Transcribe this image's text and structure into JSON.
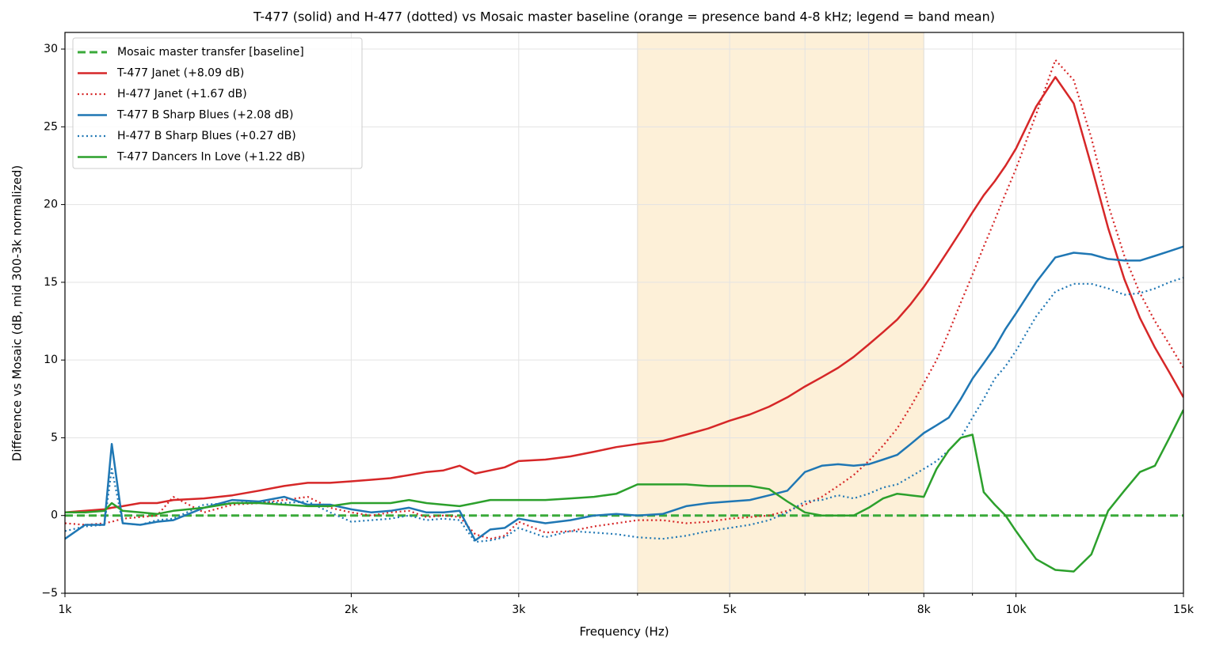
{
  "chart_data": {
    "type": "line",
    "title": "T-477 (solid) and H-477 (dotted) vs Mosaic master baseline (orange = presence band 4-8 kHz; legend = band mean)",
    "xlabel": "Frequency (Hz)",
    "ylabel": "Difference vs Mosaic (dB, mid 300-3k normalized)",
    "xscale": "log",
    "xlim": [
      1000,
      15000
    ],
    "ylim": [
      -5,
      31.07
    ],
    "xticks": [
      {
        "value": 1000,
        "label": "1k"
      },
      {
        "value": 2000,
        "label": "2k"
      },
      {
        "value": 3000,
        "label": "3k"
      },
      {
        "value": 5000,
        "label": "5k"
      },
      {
        "value": 8000,
        "label": "8k"
      },
      {
        "value": 10000,
        "label": "10k"
      },
      {
        "value": 15000,
        "label": "15k"
      }
    ],
    "xminor": [
      4000,
      6000,
      7000,
      9000
    ],
    "yticks": [
      {
        "value": -5,
        "label": "−5"
      },
      0,
      5,
      10,
      15,
      20,
      25,
      30
    ],
    "grid": true,
    "band": [
      4000,
      8000
    ],
    "band_color": "#fdf0d8",
    "legend": "upper left",
    "x": [
      1000,
      1050,
      1100,
      1120,
      1150,
      1200,
      1250,
      1300,
      1400,
      1500,
      1600,
      1700,
      1800,
      1900,
      2000,
      2100,
      2200,
      2300,
      2400,
      2500,
      2600,
      2700,
      2800,
      2900,
      3000,
      3200,
      3400,
      3600,
      3800,
      4000,
      4250,
      4500,
      4750,
      5000,
      5250,
      5500,
      5750,
      6000,
      6250,
      6500,
      6750,
      7000,
      7250,
      7500,
      7750,
      8000,
      8250,
      8500,
      8750,
      9000,
      9250,
      9500,
      9750,
      10000,
      10500,
      11000,
      11500,
      12000,
      12500,
      13000,
      13500,
      14000,
      14500,
      15000
    ],
    "series": [
      {
        "name": "Mosaic master transfer [baseline]",
        "color": "#3aaa3a",
        "dash": "dashed",
        "values": [
          0,
          0,
          0,
          0,
          0,
          0,
          0,
          0,
          0,
          0,
          0,
          0,
          0,
          0,
          0,
          0,
          0,
          0,
          0,
          0,
          0,
          0,
          0,
          0,
          0,
          0,
          0,
          0,
          0,
          0,
          0,
          0,
          0,
          0,
          0,
          0,
          0,
          0,
          0,
          0,
          0,
          0,
          0,
          0,
          0,
          0,
          0,
          0,
          0,
          0,
          0,
          0,
          0,
          0,
          0,
          0,
          0,
          0,
          0,
          0,
          0,
          0,
          0,
          0
        ]
      },
      {
        "name": "T-477  Janet (+8.09 dB)",
        "color": "#d62728",
        "dash": "solid",
        "values": [
          0.2,
          0.3,
          0.4,
          0.5,
          0.6,
          0.8,
          0.8,
          1.0,
          1.1,
          1.3,
          1.6,
          1.9,
          2.1,
          2.1,
          2.2,
          2.3,
          2.4,
          2.6,
          2.8,
          2.9,
          3.2,
          2.7,
          2.9,
          3.1,
          3.5,
          3.6,
          3.8,
          4.1,
          4.4,
          4.6,
          4.8,
          5.2,
          5.6,
          6.1,
          6.5,
          7.0,
          7.6,
          8.3,
          8.9,
          9.5,
          10.2,
          11.0,
          11.8,
          12.6,
          13.6,
          14.7,
          15.9,
          17.1,
          18.3,
          19.5,
          20.6,
          21.5,
          22.5,
          23.6,
          26.3,
          28.2,
          26.5,
          22.5,
          18.5,
          15.2,
          12.7,
          10.8,
          9.2,
          7.6
        ]
      },
      {
        "name": "H-477  Janet (+1.67 dB)",
        "color": "#d62728",
        "dash": "dotted",
        "values": [
          -0.5,
          -0.6,
          -0.5,
          -0.4,
          -0.2,
          -0.1,
          0.0,
          1.2,
          0.2,
          0.7,
          0.8,
          1.0,
          1.2,
          0.5,
          0.2,
          0.0,
          0.2,
          0.3,
          -0.1,
          0.0,
          -0.1,
          -1.2,
          -1.5,
          -1.3,
          -0.4,
          -1.1,
          -1.0,
          -0.7,
          -0.5,
          -0.3,
          -0.3,
          -0.5,
          -0.4,
          -0.2,
          -0.1,
          0.0,
          0.3,
          0.7,
          1.2,
          1.9,
          2.6,
          3.5,
          4.5,
          5.6,
          7.0,
          8.5,
          10.0,
          11.8,
          13.7,
          15.5,
          17.3,
          19.0,
          20.7,
          22.3,
          25.8,
          29.3,
          28.0,
          24.3,
          20.0,
          16.7,
          14.3,
          12.5,
          11.0,
          9.5
        ]
      },
      {
        "name": "T-477  B Sharp Blues (+2.08 dB)",
        "color": "#1f77b4",
        "dash": "solid",
        "values": [
          -1.5,
          -0.6,
          -0.6,
          4.6,
          -0.5,
          -0.6,
          -0.4,
          -0.3,
          0.5,
          1.0,
          0.9,
          1.2,
          0.7,
          0.7,
          0.4,
          0.2,
          0.3,
          0.5,
          0.2,
          0.2,
          0.3,
          -1.6,
          -0.9,
          -0.8,
          -0.2,
          -0.5,
          -0.3,
          0.0,
          0.1,
          0.0,
          0.1,
          0.6,
          0.8,
          0.9,
          1.0,
          1.3,
          1.6,
          2.8,
          3.2,
          3.3,
          3.2,
          3.3,
          3.6,
          3.9,
          4.6,
          5.3,
          5.8,
          6.3,
          7.5,
          8.8,
          9.8,
          10.8,
          12.0,
          13.0,
          15.0,
          16.6,
          16.9,
          16.8,
          16.5,
          16.4,
          16.4,
          16.7,
          17.0,
          17.3
        ]
      },
      {
        "name": "H-477  B Sharp Blues (+0.27 dB)",
        "color": "#1f77b4",
        "dash": "dotted",
        "values": [
          -1.0,
          -0.7,
          -0.6,
          3.0,
          -0.5,
          -0.6,
          -0.3,
          -0.2,
          0.7,
          0.8,
          0.9,
          0.8,
          0.9,
          0.2,
          -0.4,
          -0.3,
          -0.2,
          0.0,
          -0.3,
          -0.2,
          -0.3,
          -1.7,
          -1.6,
          -1.4,
          -0.8,
          -1.4,
          -1.0,
          -1.1,
          -1.2,
          -1.4,
          -1.5,
          -1.3,
          -1.0,
          -0.8,
          -0.6,
          -0.3,
          0.2,
          0.9,
          1.0,
          1.3,
          1.1,
          1.4,
          1.8,
          2.0,
          2.5,
          3.0,
          3.5,
          4.2,
          5.0,
          6.3,
          7.5,
          8.8,
          9.6,
          10.6,
          12.8,
          14.4,
          14.9,
          14.9,
          14.6,
          14.2,
          14.3,
          14.6,
          15.0,
          15.3
        ]
      },
      {
        "name": "T-477  Dancers In Love (+1.22 dB)",
        "color": "#2ca02c",
        "dash": "solid",
        "values": [
          0.2,
          0.2,
          0.3,
          0.8,
          0.3,
          0.2,
          0.1,
          0.3,
          0.5,
          0.8,
          0.8,
          0.7,
          0.6,
          0.6,
          0.8,
          0.8,
          0.8,
          1.0,
          0.8,
          0.7,
          0.6,
          0.8,
          1.0,
          1.0,
          1.0,
          1.0,
          1.1,
          1.2,
          1.4,
          2.0,
          2.0,
          2.0,
          1.9,
          1.9,
          1.9,
          1.7,
          0.9,
          0.2,
          0.0,
          0.0,
          0.0,
          0.5,
          1.1,
          1.4,
          1.3,
          1.2,
          3.0,
          4.2,
          5.0,
          5.2,
          1.5,
          0.7,
          0.0,
          -1.0,
          -2.8,
          -3.5,
          -3.6,
          -2.5,
          0.3,
          1.6,
          2.8,
          3.2,
          5.0,
          6.8
        ]
      }
    ]
  }
}
